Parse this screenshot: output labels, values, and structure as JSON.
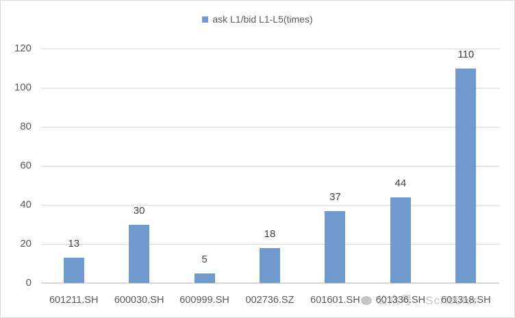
{
  "chart_data": {
    "type": "bar",
    "title": "",
    "categories": [
      "601211.SH",
      "600030.SH",
      "600999.SH",
      "002736.SZ",
      "601601.SH",
      "601336.SH",
      "601318.SH"
    ],
    "series": [
      {
        "name": "ask L1/bid L1-L5(times)",
        "values": [
          13,
          30,
          5,
          18,
          37,
          44,
          110
        ],
        "color": "#7099cd"
      }
    ],
    "data_labels": [
      "13",
      "30",
      "5",
      "18",
      "37",
      "44",
      "110"
    ],
    "xlabel": "",
    "ylabel": "",
    "ylim": [
      0,
      120
    ],
    "yticks": [
      "0",
      "20",
      "40",
      "60",
      "80",
      "100",
      "120"
    ],
    "grid": true,
    "legend_position": "top"
  },
  "legend": {
    "label": "ask L1/bid L1-L5(times)"
  },
  "watermark": {
    "text": "公众号 · Scribbler"
  }
}
